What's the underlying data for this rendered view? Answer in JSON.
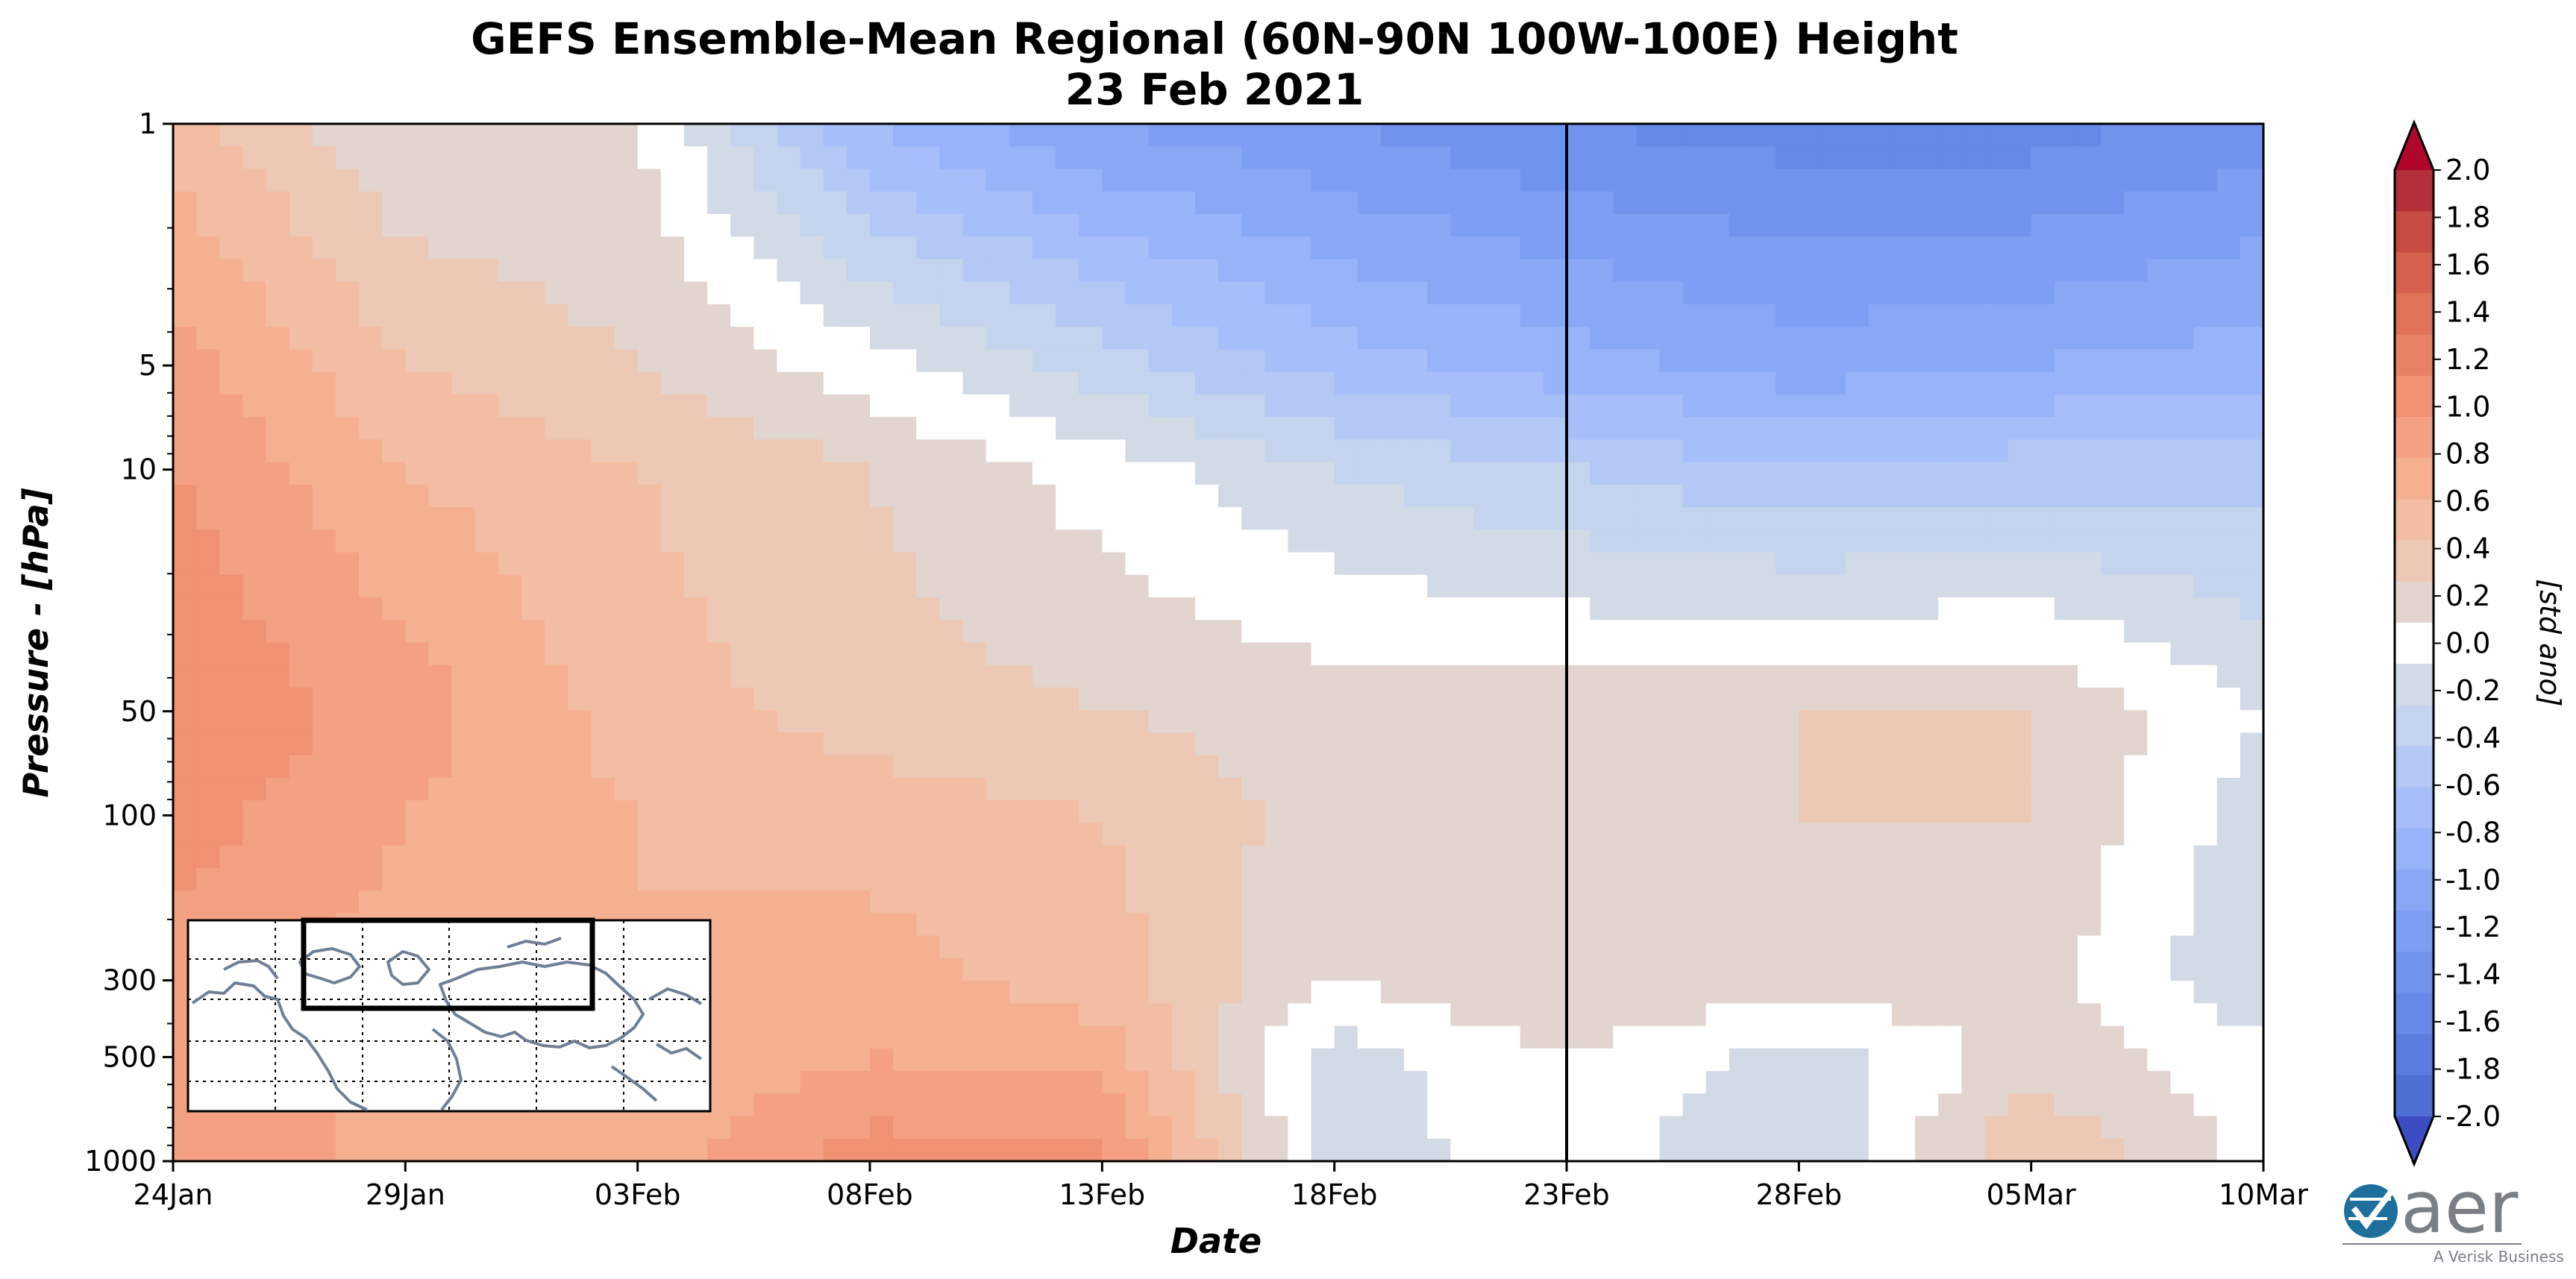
{
  "chart_data": {
    "type": "heatmap",
    "title": "GEFS Ensemble-Mean Regional (60N-90N 100W-100E) Height",
    "subtitle": "23 Feb 2021",
    "xlabel": "Date",
    "ylabel": "Pressure - [hPa]",
    "y_scale": "log",
    "y_inverted": true,
    "ylim": [
      1000,
      1
    ],
    "x_ticks": [
      "24Jan",
      "29Jan",
      "03Feb",
      "08Feb",
      "13Feb",
      "18Feb",
      "23Feb",
      "28Feb",
      "05Mar",
      "10Mar"
    ],
    "y_ticks": [
      "1",
      "5",
      "10",
      "50",
      "100",
      "300",
      "500",
      "1000"
    ],
    "vertical_marker": "23Feb",
    "colorbar": {
      "label": "[std ano]",
      "ticks": [
        "2.0",
        "1.8",
        "1.6",
        "1.4",
        "1.2",
        "1.0",
        "0.8",
        "0.6",
        "0.4",
        "0.2",
        "0.0",
        "-0.2",
        "-0.4",
        "-0.6",
        "-0.8",
        "-1.0",
        "-1.2",
        "-1.4",
        "-1.6",
        "-1.8",
        "-2.0"
      ],
      "extend": "both",
      "colors_positive": [
        "#e2d5cf",
        "#edc8b5",
        "#f2bda2",
        "#f5b092",
        "#f4a183",
        "#ef9173",
        "#e88264",
        "#df7257",
        "#d5604d",
        "#c64b41",
        "#b3303b"
      ],
      "color_zero": "#ffffff",
      "colors_negative": [
        "#d2dae6",
        "#c4d3ee",
        "#b3c8f4",
        "#a6befa",
        "#97b3f9",
        "#88a8f6",
        "#7c9ef3",
        "#7094ee",
        "#6589e7",
        "#5a7ddf",
        "#4e6fd3"
      ]
    },
    "field": {
      "x": [
        "24Jan",
        "29Jan",
        "03Feb",
        "08Feb",
        "13Feb",
        "18Feb",
        "23Feb",
        "28Feb",
        "05Mar",
        "10Mar"
      ],
      "y": [
        1,
        5,
        10,
        50,
        100,
        300,
        500,
        1000
      ],
      "z": [
        [
          0.6,
          0.1,
          0.1,
          -0.9,
          -1.3,
          -1.5,
          -1.7,
          -1.8,
          -1.8,
          -1.6
        ],
        [
          1.0,
          0.5,
          0.3,
          0.0,
          -0.4,
          -0.8,
          -1.0,
          -1.2,
          -1.1,
          -1.0
        ],
        [
          1.1,
          0.7,
          0.5,
          0.3,
          0.0,
          -0.3,
          -0.5,
          -0.7,
          -0.6,
          -0.6
        ],
        [
          1.3,
          1.0,
          0.6,
          0.4,
          0.3,
          0.2,
          0.2,
          0.3,
          0.3,
          -0.1
        ],
        [
          1.2,
          0.9,
          0.7,
          0.6,
          0.5,
          0.2,
          0.3,
          0.3,
          0.3,
          -0.2
        ],
        [
          1.0,
          0.8,
          0.7,
          0.8,
          0.6,
          0.1,
          0.3,
          0.2,
          0.2,
          -0.3
        ],
        [
          1.1,
          0.8,
          0.7,
          0.9,
          0.8,
          -0.2,
          0.1,
          -0.2,
          0.2,
          0.0
        ],
        [
          1.1,
          0.8,
          0.8,
          1.2,
          1.2,
          -0.2,
          0.0,
          -0.3,
          0.5,
          0.0
        ]
      ]
    },
    "inset_map": {
      "description_label": "",
      "region_box": "60N-90N 100W-100E"
    }
  },
  "logo": {
    "name": "aer",
    "tagline": "A Verisk Business"
  }
}
